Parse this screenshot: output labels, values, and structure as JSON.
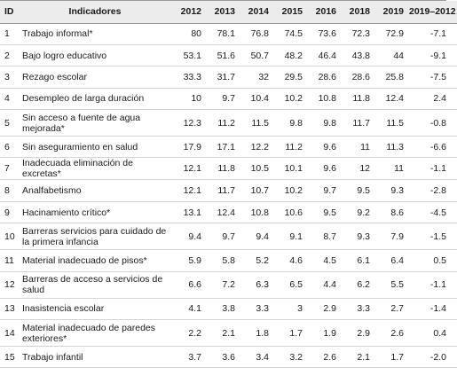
{
  "table": {
    "headers": [
      "ID",
      "Indicadores",
      "2012",
      "2013",
      "2014",
      "2015",
      "2016",
      "2018",
      "2019",
      "2019–2012"
    ],
    "rows": [
      {
        "id": "1",
        "label": "Trabajo informal*",
        "v": [
          "80",
          "78.1",
          "76.8",
          "74.5",
          "73.6",
          "72.3",
          "72.9"
        ],
        "diff": "-7.1"
      },
      {
        "id": "2",
        "label": "Bajo logro educativo",
        "v": [
          "53.1",
          "51.6",
          "50.7",
          "48.2",
          "46.4",
          "43.8",
          "44"
        ],
        "diff": "-9.1"
      },
      {
        "id": "3",
        "label": "Rezago escolar",
        "v": [
          "33.3",
          "31.7",
          "32",
          "29.5",
          "28.6",
          "28.6",
          "25.8"
        ],
        "diff": "-7.5"
      },
      {
        "id": "4",
        "label": "Desempleo de larga duración",
        "v": [
          "10",
          "9.7",
          "10.4",
          "10.2",
          "10.8",
          "11.8",
          "12.4"
        ],
        "diff": "2.4"
      },
      {
        "id": "5",
        "label": "Sin acceso a fuente de agua mejorada*",
        "v": [
          "12.3",
          "11.2",
          "11.5",
          "9.8",
          "9.8",
          "11.7",
          "11.5"
        ],
        "diff": "-0.8"
      },
      {
        "id": "6",
        "label": "Sin aseguramiento en salud",
        "v": [
          "17.9",
          "17.1",
          "12.2",
          "11.2",
          "9.6",
          "11",
          "11.3"
        ],
        "diff": "-6.6"
      },
      {
        "id": "7",
        "label": "Inadecuada eliminación de excretas*",
        "v": [
          "12.1",
          "11.8",
          "10.5",
          "10.1",
          "9.6",
          "12",
          "11"
        ],
        "diff": "-1.1"
      },
      {
        "id": "8",
        "label": "Analfabetismo",
        "v": [
          "12.1",
          "11.7",
          "10.7",
          "10.2",
          "9.7",
          "9.5",
          "9.3"
        ],
        "diff": "-2.8"
      },
      {
        "id": "9",
        "label": "Hacinamiento crítico*",
        "v": [
          "13.1",
          "12.4",
          "10.8",
          "10.6",
          "9.5",
          "9.2",
          "8.6"
        ],
        "diff": "-4.5"
      },
      {
        "id": "10",
        "label": "Barreras servicios para cuidado de la primera infancia",
        "v": [
          "9.4",
          "9.7",
          "9.4",
          "9.1",
          "8.7",
          "9.3",
          "7.9"
        ],
        "diff": "-1.5"
      },
      {
        "id": "11",
        "label": "Material inadecuado de pisos*",
        "v": [
          "5.9",
          "5.8",
          "5.2",
          "4.6",
          "4.5",
          "6.1",
          "6.4"
        ],
        "diff": "0.5"
      },
      {
        "id": "12",
        "label": "Barreras de acceso a servicios de salud",
        "v": [
          "6.6",
          "7.2",
          "6.3",
          "6.5",
          "4.4",
          "6.2",
          "5.5"
        ],
        "diff": "-1.1"
      },
      {
        "id": "13",
        "label": "Inasistencia escolar",
        "v": [
          "4.1",
          "3.8",
          "3.3",
          "3",
          "2.9",
          "3.3",
          "2.7"
        ],
        "diff": "-1.4"
      },
      {
        "id": "14",
        "label": "Material inadecuado de paredes exteriores*",
        "v": [
          "2.2",
          "2.1",
          "1.8",
          "1.7",
          "1.9",
          "2.9",
          "2.6"
        ],
        "diff": "0.4"
      },
      {
        "id": "15",
        "label": "Trabajo infantil",
        "v": [
          "3.7",
          "3.6",
          "3.4",
          "3.2",
          "2.6",
          "2.1",
          "1.7"
        ],
        "diff": "-2.0"
      }
    ]
  }
}
